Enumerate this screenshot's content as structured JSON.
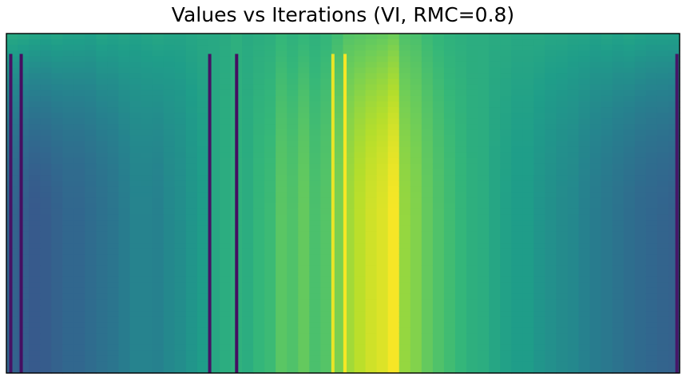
{
  "chart_data": {
    "type": "heatmap",
    "title": "Values vs Iterations (VI, RMC=0.8)",
    "colormap": "viridis",
    "xticks": "none",
    "yticks": "none",
    "legend": "none",
    "colorbar": "none",
    "rows": 60,
    "column_values_start": [
      0.6,
      0.59,
      0.58,
      0.57,
      0.58,
      0.57,
      0.57,
      0.56,
      0.58,
      0.57,
      0.58,
      0.57,
      0.58,
      0.59,
      0.58,
      0.58,
      0.59,
      0.6,
      0.6,
      0.61,
      0.63,
      0.61,
      0.62,
      0.63,
      0.66,
      0.64,
      0.66,
      0.64,
      0.66,
      0.69,
      0.73,
      0.74,
      0.75,
      0.76,
      0.78,
      0.72,
      0.71,
      0.68,
      0.66,
      0.64,
      0.63,
      0.62,
      0.62,
      0.61,
      0.61,
      0.6,
      0.6,
      0.6,
      0.59,
      0.59,
      0.58,
      0.58,
      0.57,
      0.58,
      0.57,
      0.58,
      0.57,
      0.56,
      0.56,
      0.56
    ],
    "column_values_end": [
      0.32,
      0.3,
      0.28,
      0.29,
      0.31,
      0.33,
      0.33,
      0.35,
      0.37,
      0.39,
      0.42,
      0.45,
      0.45,
      0.44,
      0.47,
      0.49,
      0.52,
      0.55,
      0.6,
      0.62,
      0.64,
      0.62,
      0.66,
      0.68,
      0.74,
      0.72,
      0.76,
      0.71,
      0.73,
      0.8,
      0.86,
      0.9,
      0.93,
      0.95,
      0.99,
      0.84,
      0.81,
      0.76,
      0.72,
      0.69,
      0.66,
      0.63,
      0.62,
      0.59,
      0.57,
      0.55,
      0.55,
      0.52,
      0.5,
      0.48,
      0.47,
      0.44,
      0.42,
      0.4,
      0.38,
      0.36,
      0.34,
      0.33,
      0.32,
      0.31
    ],
    "dark_columns": [
      {
        "col": 0.0065,
        "value": 0.05
      },
      {
        "col": 0.022,
        "value": 0.04
      },
      {
        "col": 0.302,
        "value": 0.05
      },
      {
        "col": 0.342,
        "value": 0.04
      },
      {
        "col": 0.996,
        "value": 0.06
      }
    ],
    "bright_columns": [
      {
        "col": 0.485,
        "value": 0.97
      },
      {
        "col": 0.503,
        "value": 0.99
      }
    ]
  }
}
